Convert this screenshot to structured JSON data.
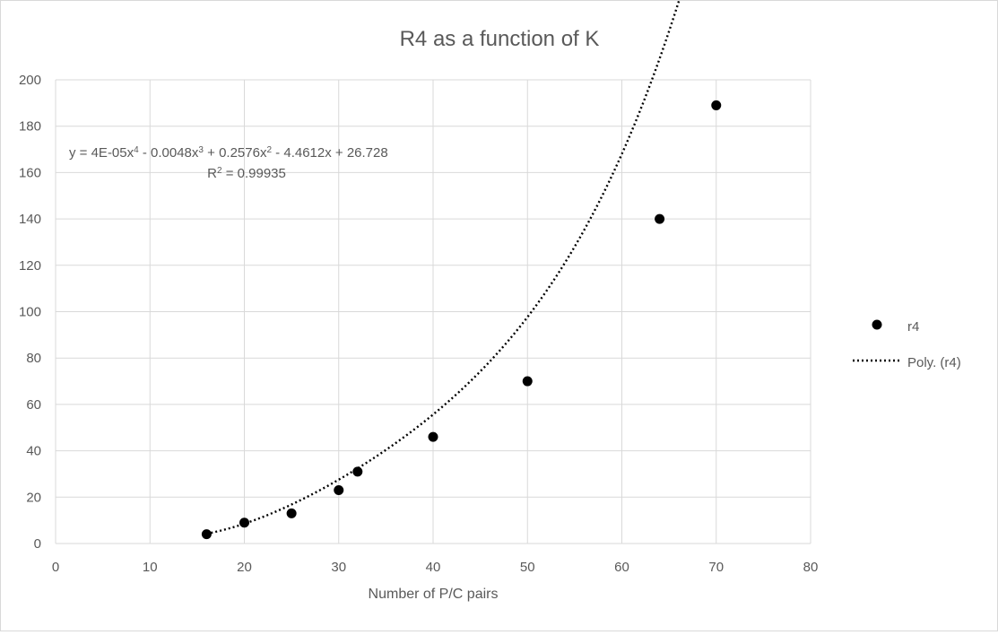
{
  "chart_data": {
    "type": "scatter",
    "title": "R4 as a function of K",
    "xlabel": "Number of P/C pairs",
    "ylabel": "",
    "xlim": [
      0,
      80
    ],
    "ylim": [
      0,
      200
    ],
    "x_ticks": [
      0,
      10,
      20,
      30,
      40,
      50,
      60,
      70,
      80
    ],
    "y_ticks": [
      0,
      20,
      40,
      60,
      80,
      100,
      120,
      140,
      160,
      180,
      200
    ],
    "grid": true,
    "legend_position": "right",
    "series": [
      {
        "name": "r4",
        "kind": "markers",
        "color": "#000000",
        "x": [
          16,
          20,
          25,
          30,
          32,
          40,
          50,
          64,
          70
        ],
        "y": [
          4,
          9,
          13,
          23,
          31,
          46,
          70,
          140,
          189
        ]
      }
    ],
    "trendline": {
      "name": "Poly. (r4)",
      "style": "dotted",
      "color": "#000000",
      "coefficients": [
        26.728,
        -4.4612,
        0.2576,
        -0.0048,
        4e-05
      ],
      "x_range": [
        16,
        70
      ],
      "equation_parts": [
        "y = 4E-05x",
        "4",
        " - 0.0048x",
        "3",
        " + 0.2576x",
        "2",
        " - 4.4612x + 26.728"
      ],
      "r2_parts": [
        "R",
        "2",
        " = 0.99935"
      ]
    }
  }
}
